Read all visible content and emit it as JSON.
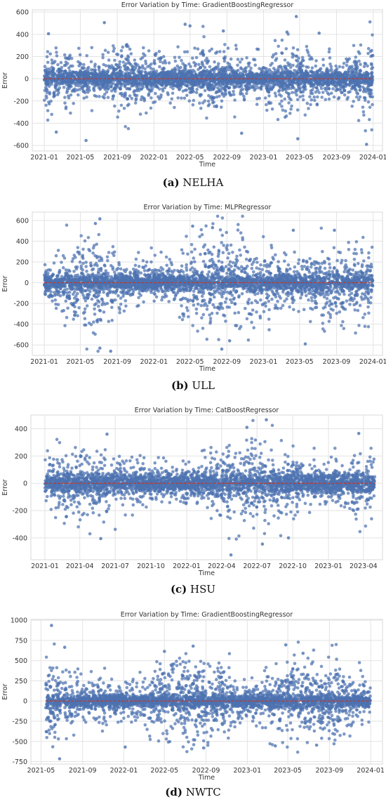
{
  "charts": [
    {
      "caption_letter": "(a)",
      "caption_name": "NELHA",
      "chart_data": {
        "type": "scatter",
        "title": "Error Variation by Time: GradientBoostingRegressor",
        "xlabel": "Time",
        "ylabel": "Error",
        "x_range": [
          "2020-11-22",
          "2024-02-01"
        ],
        "ylim": [
          -650,
          620
        ],
        "x_ticks": [
          "2021-01",
          "2021-05",
          "2021-09",
          "2022-01",
          "2022-05",
          "2022-09",
          "2023-01",
          "2023-05",
          "2023-09",
          "2024-01"
        ],
        "y_ticks": [
          -600,
          -400,
          -200,
          0,
          200,
          400,
          600
        ],
        "data_start": "2021-01-01",
        "data_end": "2023-12-31",
        "reference_line": 0,
        "grid": true,
        "point_color": "#4c72b0",
        "line_color": "#c0392b",
        "outliers": [
          {
            "x": "2021-01-15",
            "y": 405
          },
          {
            "x": "2021-07-20",
            "y": 505
          },
          {
            "x": "2022-04-15",
            "y": 490
          },
          {
            "x": "2022-05-01",
            "y": 475
          },
          {
            "x": "2022-08-20",
            "y": 430
          },
          {
            "x": "2023-04-20",
            "y": 560
          },
          {
            "x": "2023-03-20",
            "y": 420
          },
          {
            "x": "2023-07-05",
            "y": 410
          },
          {
            "x": "2021-05-20",
            "y": -555
          },
          {
            "x": "2023-12-10",
            "y": -590
          },
          {
            "x": "2023-04-25",
            "y": -540
          },
          {
            "x": "2022-10-20",
            "y": -490
          },
          {
            "x": "2021-02-10",
            "y": -480
          }
        ],
        "envelope": [
          [
            0.55,
            280
          ],
          [
            0.25,
            180
          ],
          [
            0.55,
            300
          ],
          [
            0.25,
            170
          ],
          [
            0.45,
            260
          ],
          [
            0.3,
            190
          ],
          [
            0.55,
            280
          ],
          [
            0.3,
            180
          ],
          [
            0.5,
            270
          ]
        ]
      }
    },
    {
      "caption_letter": "(b)",
      "caption_name": "ULL",
      "chart_data": {
        "type": "scatter",
        "title": "Error Variation by Time: MLPRegressor",
        "xlabel": "Time",
        "ylabel": "Error",
        "x_range": [
          "2020-11-22",
          "2024-02-01"
        ],
        "ylim": [
          -700,
          680
        ],
        "x_ticks": [
          "2021-01",
          "2021-05",
          "2021-09",
          "2022-01",
          "2022-05",
          "2022-09",
          "2023-01",
          "2023-05",
          "2023-09",
          "2024-01"
        ],
        "y_ticks": [
          -600,
          -400,
          -200,
          0,
          200,
          400,
          600
        ],
        "data_start": "2021-01-01",
        "data_end": "2023-12-31",
        "reference_line": 0,
        "grid": true,
        "point_color": "#4c72b0",
        "line_color": "#c0392b",
        "outliers": [
          {
            "x": "2021-07-05",
            "y": 615
          },
          {
            "x": "2021-06-20",
            "y": 570
          },
          {
            "x": "2022-05-10",
            "y": 545
          },
          {
            "x": "2022-07-15",
            "y": 530
          },
          {
            "x": "2023-04-10",
            "y": 505
          },
          {
            "x": "2023-08-25",
            "y": 505
          },
          {
            "x": "2021-08-10",
            "y": -660
          },
          {
            "x": "2021-07-05",
            "y": -630
          },
          {
            "x": "2022-08-15",
            "y": -640
          },
          {
            "x": "2023-05-20",
            "y": -590
          },
          {
            "x": "2022-09-10",
            "y": -560
          }
        ],
        "envelope": [
          [
            0.3,
            200
          ],
          [
            0.6,
            400
          ],
          [
            0.3,
            200
          ],
          [
            0.3,
            190
          ],
          [
            0.55,
            400
          ],
          [
            0.55,
            420
          ],
          [
            0.3,
            200
          ],
          [
            0.55,
            340
          ],
          [
            0.5,
            300
          ]
        ]
      }
    },
    {
      "caption_letter": "(c)",
      "caption_name": "HSU",
      "chart_data": {
        "type": "scatter",
        "title": "Error Variation by Time: CatBoostRegressor",
        "xlabel": "Time",
        "ylabel": "Error",
        "x_range": [
          "2020-11-26",
          "2023-05-20"
        ],
        "ylim": [
          -560,
          500
        ],
        "x_ticks": [
          "2021-01",
          "2021-04",
          "2021-07",
          "2021-10",
          "2022-01",
          "2022-04",
          "2022-07",
          "2022-10",
          "2023-01",
          "2023-04"
        ],
        "y_ticks": [
          -400,
          -200,
          0,
          200,
          400
        ],
        "data_start": "2021-01-01",
        "data_end": "2023-04-30",
        "reference_line": 0,
        "grid": true,
        "point_color": "#4c72b0",
        "line_color": "#c0392b",
        "outliers": [
          {
            "x": "2022-07-25",
            "y": 465
          },
          {
            "x": "2022-06-05",
            "y": 410
          },
          {
            "x": "2021-06-10",
            "y": 360
          },
          {
            "x": "2023-03-20",
            "y": 365
          },
          {
            "x": "2022-04-25",
            "y": -525
          },
          {
            "x": "2022-07-15",
            "y": -445
          },
          {
            "x": "2021-05-25",
            "y": -405
          },
          {
            "x": "2022-09-20",
            "y": -400
          },
          {
            "x": "2021-02-25",
            "y": -245
          }
        ],
        "envelope": [
          [
            0.35,
            170
          ],
          [
            0.45,
            230
          ],
          [
            0.35,
            180
          ],
          [
            0.3,
            150
          ],
          [
            0.3,
            150
          ],
          [
            0.5,
            280
          ],
          [
            0.45,
            260
          ],
          [
            0.35,
            170
          ],
          [
            0.3,
            150
          ],
          [
            0.45,
            240
          ]
        ]
      }
    },
    {
      "caption_letter": "(d)",
      "caption_name": "NWTC",
      "chart_data": {
        "type": "scatter",
        "title": "Error Variation by Time: GradientBoostingRegressor",
        "xlabel": "Time",
        "ylabel": "Error",
        "x_range": [
          "2021-04-01",
          "2024-02-05"
        ],
        "ylim": [
          -780,
          1010
        ],
        "x_ticks": [
          "2021-05",
          "2021-09",
          "2022-01",
          "2022-05",
          "2022-09",
          "2023-01",
          "2023-05",
          "2023-09",
          "2024-01"
        ],
        "y_ticks": [
          -750,
          -500,
          -250,
          0,
          250,
          500,
          750,
          1000
        ],
        "data_start": "2021-05-15",
        "data_end": "2023-12-31",
        "reference_line": 0,
        "grid": true,
        "point_color": "#4c72b0",
        "line_color": "#c0392b",
        "outliers": [
          {
            "x": "2021-06-01",
            "y": 935
          },
          {
            "x": "2021-07-10",
            "y": 665
          },
          {
            "x": "2022-07-25",
            "y": 680
          },
          {
            "x": "2023-04-25",
            "y": 695
          },
          {
            "x": "2022-05-01",
            "y": 615
          },
          {
            "x": "2023-06-15",
            "y": 590
          },
          {
            "x": "2021-06-25",
            "y": -715
          },
          {
            "x": "2022-08-25",
            "y": -580
          },
          {
            "x": "2022-01-05",
            "y": -570
          },
          {
            "x": "2023-03-25",
            "y": -555
          },
          {
            "x": "2023-07-25",
            "y": -545
          }
        ],
        "envelope": [
          [
            0.6,
            450
          ],
          [
            0.35,
            280
          ],
          [
            0.3,
            220
          ],
          [
            0.55,
            420
          ],
          [
            0.6,
            450
          ],
          [
            0.3,
            220
          ],
          [
            0.55,
            440
          ],
          [
            0.55,
            420
          ],
          [
            0.35,
            260
          ]
        ]
      }
    }
  ]
}
